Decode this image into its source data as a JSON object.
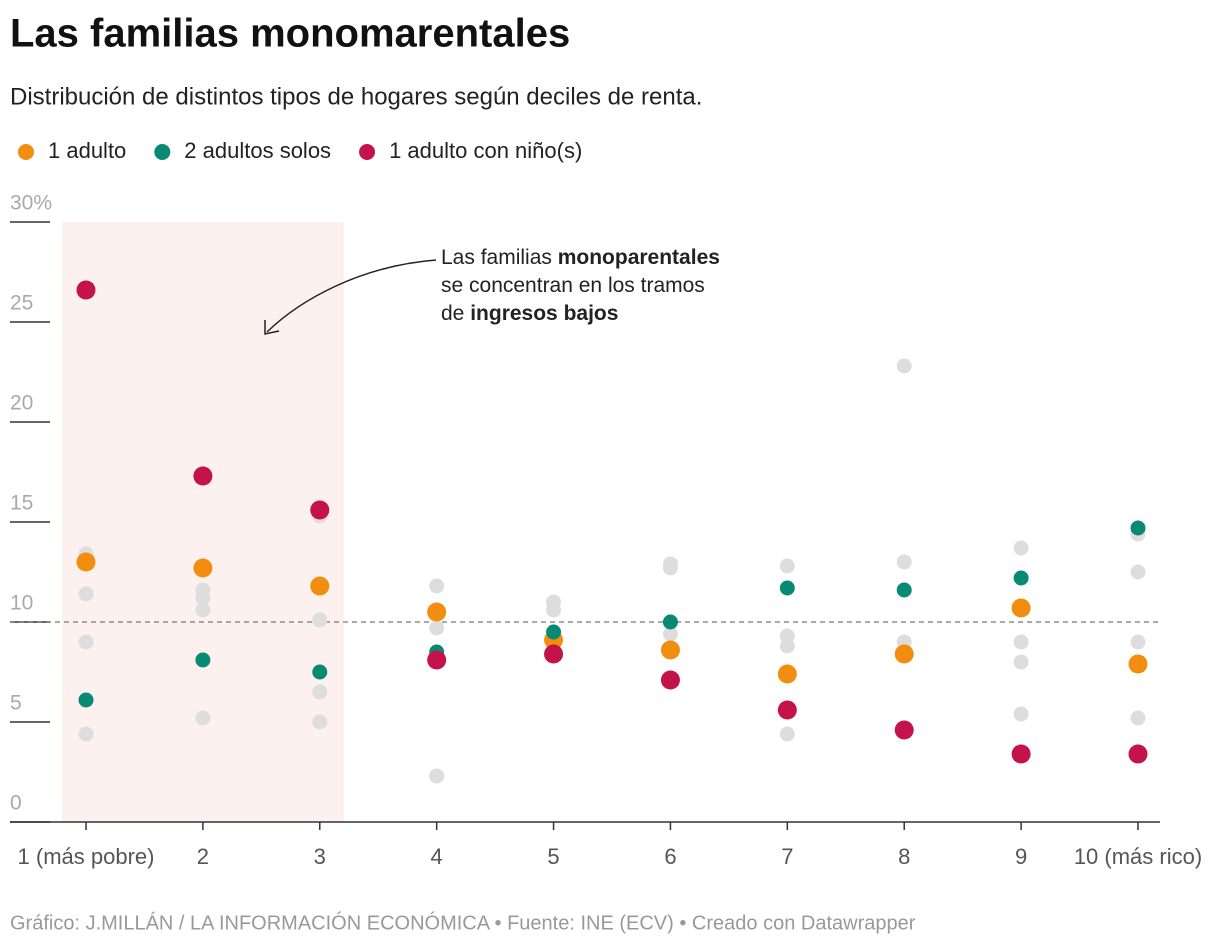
{
  "chart_data": {
    "type": "dot",
    "title": "Las familias monomarentales",
    "subtitle": "Distribución de distintos tipos de hogares según deciles de renta.",
    "source": "Gráfico: J.MILLÁN / LA INFORMACIÓN ECONÓMICA • Fuente: INE (ECV) • Creado con Datawrapper",
    "categories": [
      "1 (más pobre)",
      "2",
      "3",
      "4",
      "5",
      "6",
      "7",
      "8",
      "9",
      "10 (más rico)"
    ],
    "ylim": [
      0,
      30
    ],
    "yticks": [
      0,
      5,
      10,
      15,
      20,
      25,
      {
        "value": 30,
        "label": "30%"
      }
    ],
    "hline": 10,
    "highlight": {
      "from": "1 (más pobre)",
      "to": "3",
      "color": "#fcf1ef"
    },
    "annotation": [
      [
        {
          "text": "Las familias "
        },
        {
          "text": "monoparentales",
          "bold": true
        }
      ],
      [
        {
          "text": "se concentran en los tramos"
        }
      ],
      [
        {
          "text": "de "
        },
        {
          "text": "ingresos bajos",
          "bold": true
        }
      ]
    ],
    "series": [
      {
        "color": "#dddddd",
        "values": [
          13.4,
          11.6,
          15.3,
          11.8,
          11.0,
          12.9,
          12.8,
          22.8,
          13.7,
          14.4
        ]
      },
      {
        "color": "#dddddd",
        "values": [
          11.4,
          11.2,
          10.1,
          9.7,
          10.6,
          12.7,
          9.3,
          13.0,
          9.0,
          12.5
        ]
      },
      {
        "color": "#dddddd",
        "values": [
          9.0,
          10.6,
          6.5,
          2.3,
          null,
          9.4,
          8.8,
          9.0,
          8.0,
          9.0
        ]
      },
      {
        "color": "#dddddd",
        "values": [
          4.4,
          5.2,
          5.0,
          null,
          null,
          null,
          4.4,
          null,
          5.4,
          5.2
        ]
      },
      {
        "name": "1 adulto",
        "color": "#f28e0f",
        "values": [
          13.0,
          12.7,
          11.8,
          10.5,
          9.1,
          8.6,
          7.4,
          8.4,
          10.7,
          7.9
        ]
      },
      {
        "name": "2 adultos solos",
        "color": "#078a73",
        "values": [
          6.1,
          8.1,
          7.5,
          8.5,
          9.5,
          10.0,
          11.7,
          11.6,
          12.2,
          14.7
        ]
      },
      {
        "name": "1 adulto con niño(s)",
        "color": "#c3134a",
        "values": [
          26.6,
          17.3,
          15.6,
          8.1,
          8.4,
          7.1,
          5.6,
          4.6,
          3.4,
          3.4
        ]
      }
    ]
  }
}
